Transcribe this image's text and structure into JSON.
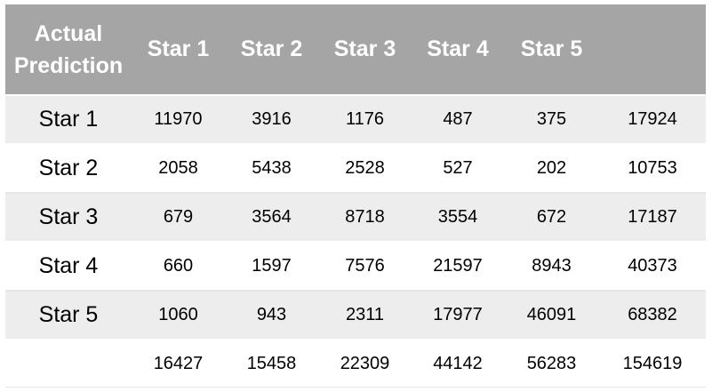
{
  "table": {
    "corner_line1": "Actual",
    "corner_line2": "Prediction",
    "columns": [
      "Star 1",
      "Star 2",
      "Star 3",
      "Star 4",
      "Star 5",
      ""
    ],
    "rows": [
      {
        "label": "Star 1",
        "values": [
          "11970",
          "3916",
          "1176",
          "487",
          "375",
          "17924"
        ]
      },
      {
        "label": "Star 2",
        "values": [
          "2058",
          "5438",
          "2528",
          "527",
          "202",
          "10753"
        ]
      },
      {
        "label": "Star 3",
        "values": [
          "679",
          "3564",
          "8718",
          "3554",
          "672",
          "17187"
        ]
      },
      {
        "label": "Star 4",
        "values": [
          "660",
          "1597",
          "7576",
          "21597",
          "8943",
          "40373"
        ]
      },
      {
        "label": "Star 5",
        "values": [
          "1060",
          "943",
          "2311",
          "17977",
          "46091",
          "68382"
        ]
      }
    ],
    "totals": {
      "label": "",
      "values": [
        "16427",
        "15458",
        "22309",
        "44142",
        "56283",
        "154619"
      ]
    },
    "colors": {
      "header_bg": "#a5a5a5",
      "header_text": "#ffffff",
      "shaded_row_bg": "#ededed",
      "plain_row_bg": "#ffffff"
    }
  }
}
